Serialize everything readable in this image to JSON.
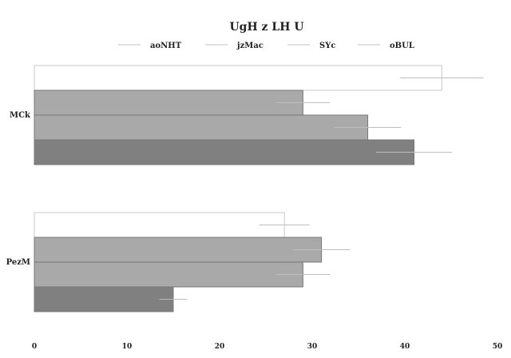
{
  "chart_data": {
    "type": "bar",
    "orientation": "horizontal",
    "title": "UgH  z LH U",
    "xlabel": "",
    "ylabel": "",
    "xlim": [
      0,
      50
    ],
    "xticks": [
      0,
      10,
      20,
      30,
      40,
      50
    ],
    "grid": false,
    "legend": "top",
    "categories": [
      "MCk",
      "PezM"
    ],
    "series": [
      {
        "name": "aoNHT",
        "color": "#ffffff",
        "values": [
          44,
          27
        ],
        "errors": [
          4.5,
          2.7
        ]
      },
      {
        "name": "jzMac",
        "color": "#a9a9a9",
        "values": [
          29,
          31
        ],
        "errors": [
          2.9,
          3.1
        ]
      },
      {
        "name": "SYc",
        "color": "#a9a9a9",
        "values": [
          36,
          29
        ],
        "errors": [
          3.6,
          2.9
        ]
      },
      {
        "name": "oBUL",
        "color": "#808080",
        "values": [
          41,
          15
        ],
        "errors": [
          4.1,
          1.5
        ]
      }
    ]
  }
}
